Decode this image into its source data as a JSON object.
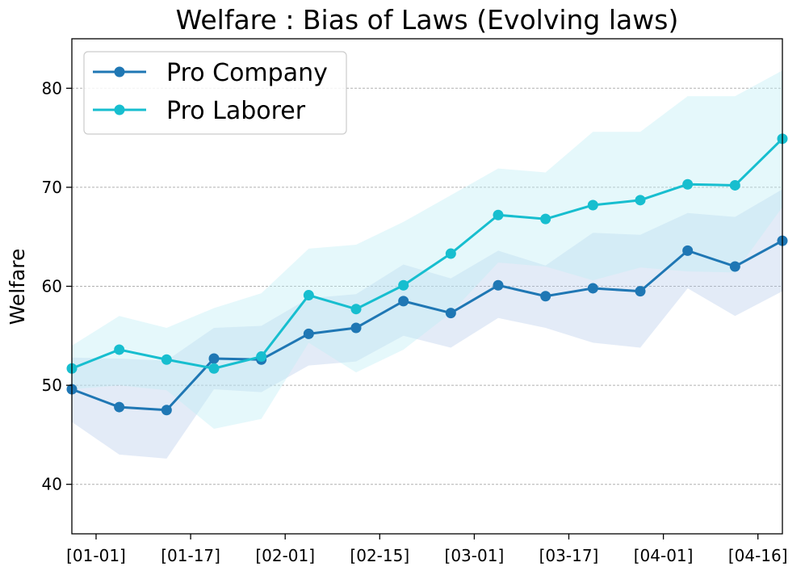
{
  "chart_data": {
    "type": "line",
    "title": "Welfare : Bias of Laws (Evolving laws)",
    "xlabel": "",
    "ylabel": "Welfare",
    "ylim": [
      35,
      85
    ],
    "yticks": [
      40,
      50,
      60,
      70,
      80
    ],
    "xticks": [
      "[01-01]",
      "[01-17]",
      "[02-01]",
      "[02-15]",
      "[03-01]",
      "[03-17]",
      "[04-01]",
      "[04-16]"
    ],
    "grid": "horizontal dashed",
    "legend_position": "upper-left",
    "series": [
      {
        "name": "Pro Company",
        "color": "#1f77b4",
        "band_color": "#aec7e8",
        "x": [
          0,
          1,
          2,
          3,
          4,
          5,
          6,
          7,
          8,
          9,
          10,
          11,
          12,
          13,
          14,
          15
        ],
        "values": [
          49.6,
          47.8,
          47.5,
          52.7,
          52.6,
          55.2,
          55.8,
          58.5,
          57.3,
          60.1,
          59.0,
          59.8,
          59.5,
          63.6,
          62.0,
          64.6
        ],
        "upper": [
          52.8,
          52.7,
          52.5,
          55.8,
          56.0,
          58.8,
          59.2,
          62.2,
          60.8,
          63.6,
          62.1,
          65.4,
          65.2,
          67.4,
          67.0,
          69.8
        ],
        "lower": [
          46.3,
          43.0,
          42.6,
          49.6,
          49.3,
          52.0,
          52.4,
          55.0,
          53.8,
          56.8,
          55.8,
          54.3,
          53.8,
          59.8,
          57.0,
          59.5
        ]
      },
      {
        "name": "Pro Laborer",
        "color": "#17becf",
        "band_color": "#bfeef5",
        "x": [
          0,
          1,
          2,
          3,
          4,
          5,
          6,
          7,
          8,
          9,
          10,
          11,
          12,
          13,
          14,
          15
        ],
        "values": [
          51.7,
          53.6,
          52.6,
          51.7,
          52.9,
          59.1,
          57.7,
          60.1,
          63.3,
          67.2,
          66.8,
          68.2,
          68.7,
          70.3,
          70.2,
          74.9
        ],
        "upper": [
          54.0,
          57.0,
          55.8,
          57.8,
          59.3,
          63.8,
          64.2,
          66.5,
          69.2,
          71.9,
          71.5,
          75.6,
          75.6,
          79.2,
          79.2,
          81.8
        ],
        "lower": [
          49.6,
          50.0,
          49.5,
          45.6,
          46.6,
          54.3,
          51.3,
          53.6,
          57.3,
          62.4,
          62.0,
          60.6,
          61.9,
          61.5,
          61.4,
          68.0
        ]
      }
    ]
  }
}
